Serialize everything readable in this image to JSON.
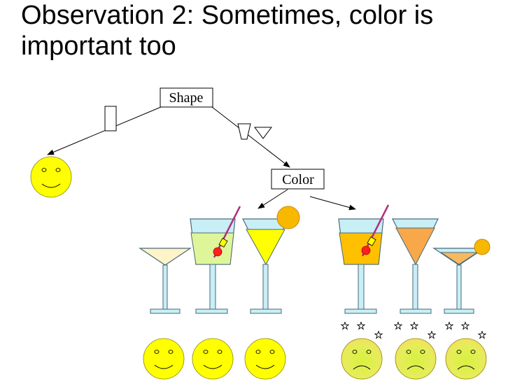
{
  "title": {
    "line1": "Observation 2: Sometimes, color is",
    "line2": "important too"
  },
  "tree": {
    "root_label": "Shape",
    "child_label": "Color"
  },
  "colors": {
    "smiley_fill": "#ffff00",
    "sick_face_fill": "#dcf04a",
    "sick_face_glow": "#f0e060",
    "glass_outline": "#4a6a7a",
    "stem_fill": "#c8eef6",
    "glass_top_tint": "#c8eef6",
    "pale_drink": "#fff3c8",
    "lime_drink": "#dff59a",
    "yellow_drink": "#ffff00",
    "amber_drink": "#ffc000",
    "orange_drink": "#f8a848",
    "peach_drink": "#f8b860",
    "straw": "#b03080",
    "cherry": "#ff2020",
    "orange_slice": "#f8b800"
  },
  "icons": [
    "rectangle-glass-icon",
    "trapezoid-glass-icon",
    "triangle-glass-icon",
    "happy-face-icon",
    "sick-face-icon",
    "star-icon",
    "martini-glass-icon",
    "tall-glass-icon",
    "straw-icon",
    "cherry-icon",
    "orange-slice-icon"
  ]
}
